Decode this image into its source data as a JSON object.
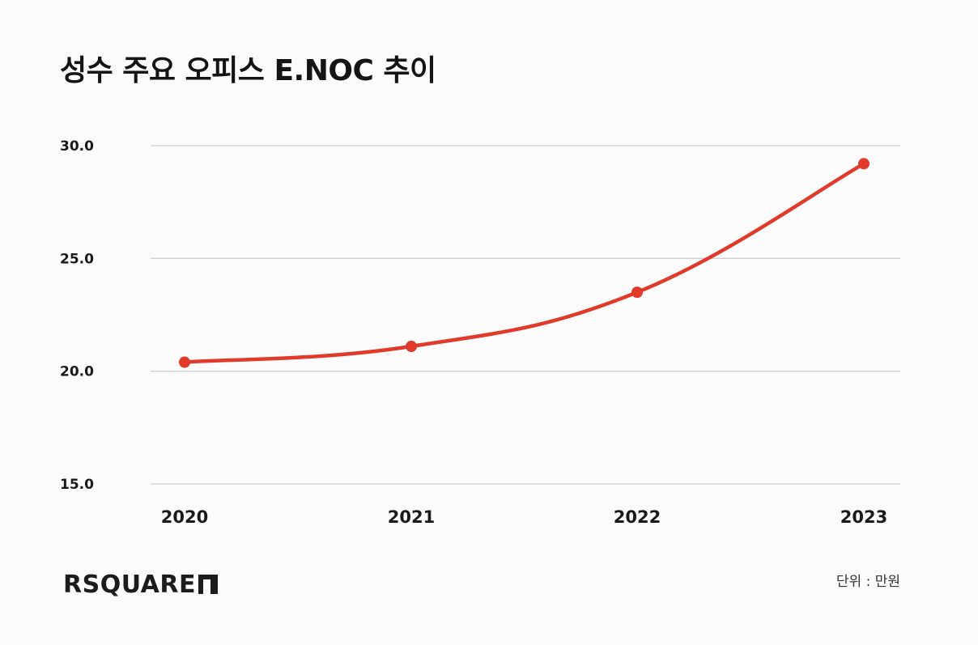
{
  "title": "성수 주요 오피스 E.NOC 추이",
  "unit_note": "단위 : 만원",
  "brand": {
    "name": "RSQUARE",
    "mark": "logo-mark-icon"
  },
  "colors": {
    "line": "#e03a2b",
    "grid": "#cfcfcf",
    "text": "#1a1a1a"
  },
  "chart_data": {
    "type": "line",
    "title": "성수 주요 오피스 E.NOC 추이",
    "categories": [
      "2020",
      "2021",
      "2022",
      "2023"
    ],
    "series": [
      {
        "values": [
          20.4,
          21.1,
          23.5,
          29.2
        ]
      }
    ],
    "ylim": [
      15.0,
      30.0
    ],
    "yticks": [
      "15.0",
      "20.0",
      "25.0",
      "30.0"
    ],
    "grid": true,
    "smooth": true,
    "legend": "none"
  }
}
